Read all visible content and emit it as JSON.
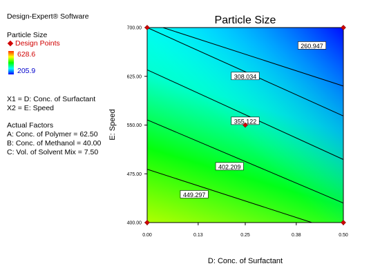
{
  "app": {
    "title": "Design-Expert® Software"
  },
  "legend": {
    "response": "Particle Size",
    "points_label": "Design Points",
    "max": "628.6",
    "min": "205.9",
    "colors": [
      "#ff3000",
      "#ffff00",
      "#00ff00",
      "#00ffff",
      "#0000ff"
    ]
  },
  "factors": {
    "x1": "X1 = D: Conc. of Surfactant",
    "x2": "X2 = E: Speed"
  },
  "actual_factors": {
    "heading": "Actual Factors",
    "a": "A: Conc. of Polymer = 62.50",
    "b": "B: Conc. of Methanol = 40.00",
    "c": "C: Vol. of Solvent Mix = 7.50"
  },
  "chart_data": {
    "type": "contour",
    "title": "Particle Size",
    "xlabel": "D: Conc. of Surfactant",
    "ylabel": "E: Speed",
    "xlim": [
      0.0,
      0.5
    ],
    "ylim": [
      400,
      700
    ],
    "x_ticks": [
      "0.00",
      "0.13",
      "0.25",
      "0.38",
      "0.50"
    ],
    "y_ticks": [
      "400.00",
      "475.00",
      "550.00",
      "625.00",
      "700.00"
    ],
    "contours": [
      {
        "level": "260.947",
        "label_at": [
          0.42,
          672
        ]
      },
      {
        "level": "308.034",
        "label_at": [
          0.25,
          625
        ]
      },
      {
        "level": "355.122",
        "label_at": [
          0.25,
          556
        ]
      },
      {
        "level": "402.209",
        "label_at": [
          0.21,
          486
        ]
      },
      {
        "level": "449.297",
        "label_at": [
          0.12,
          443
        ]
      }
    ],
    "contour_paths": [
      [
        [
          0.04,
          700
        ],
        [
          0.5,
          610
        ]
      ],
      [
        [
          0.0,
          700
        ],
        [
          0.5,
          564
        ]
      ],
      [
        [
          0.0,
          635
        ],
        [
          0.5,
          497
        ]
      ],
      [
        [
          0.0,
          558
        ],
        [
          0.5,
          430
        ]
      ],
      [
        [
          0.0,
          482
        ],
        [
          0.42,
          400
        ]
      ]
    ],
    "design_points": [
      [
        0.0,
        400
      ],
      [
        0.0,
        700
      ],
      [
        0.5,
        400
      ],
      [
        0.5,
        700
      ],
      [
        0.25,
        550
      ]
    ],
    "surface_colors": {
      "top_right": "#0000ff",
      "top_left": "#00ffff",
      "bottom_right": "#00ff66",
      "bottom_left": "#b0ff00"
    }
  }
}
